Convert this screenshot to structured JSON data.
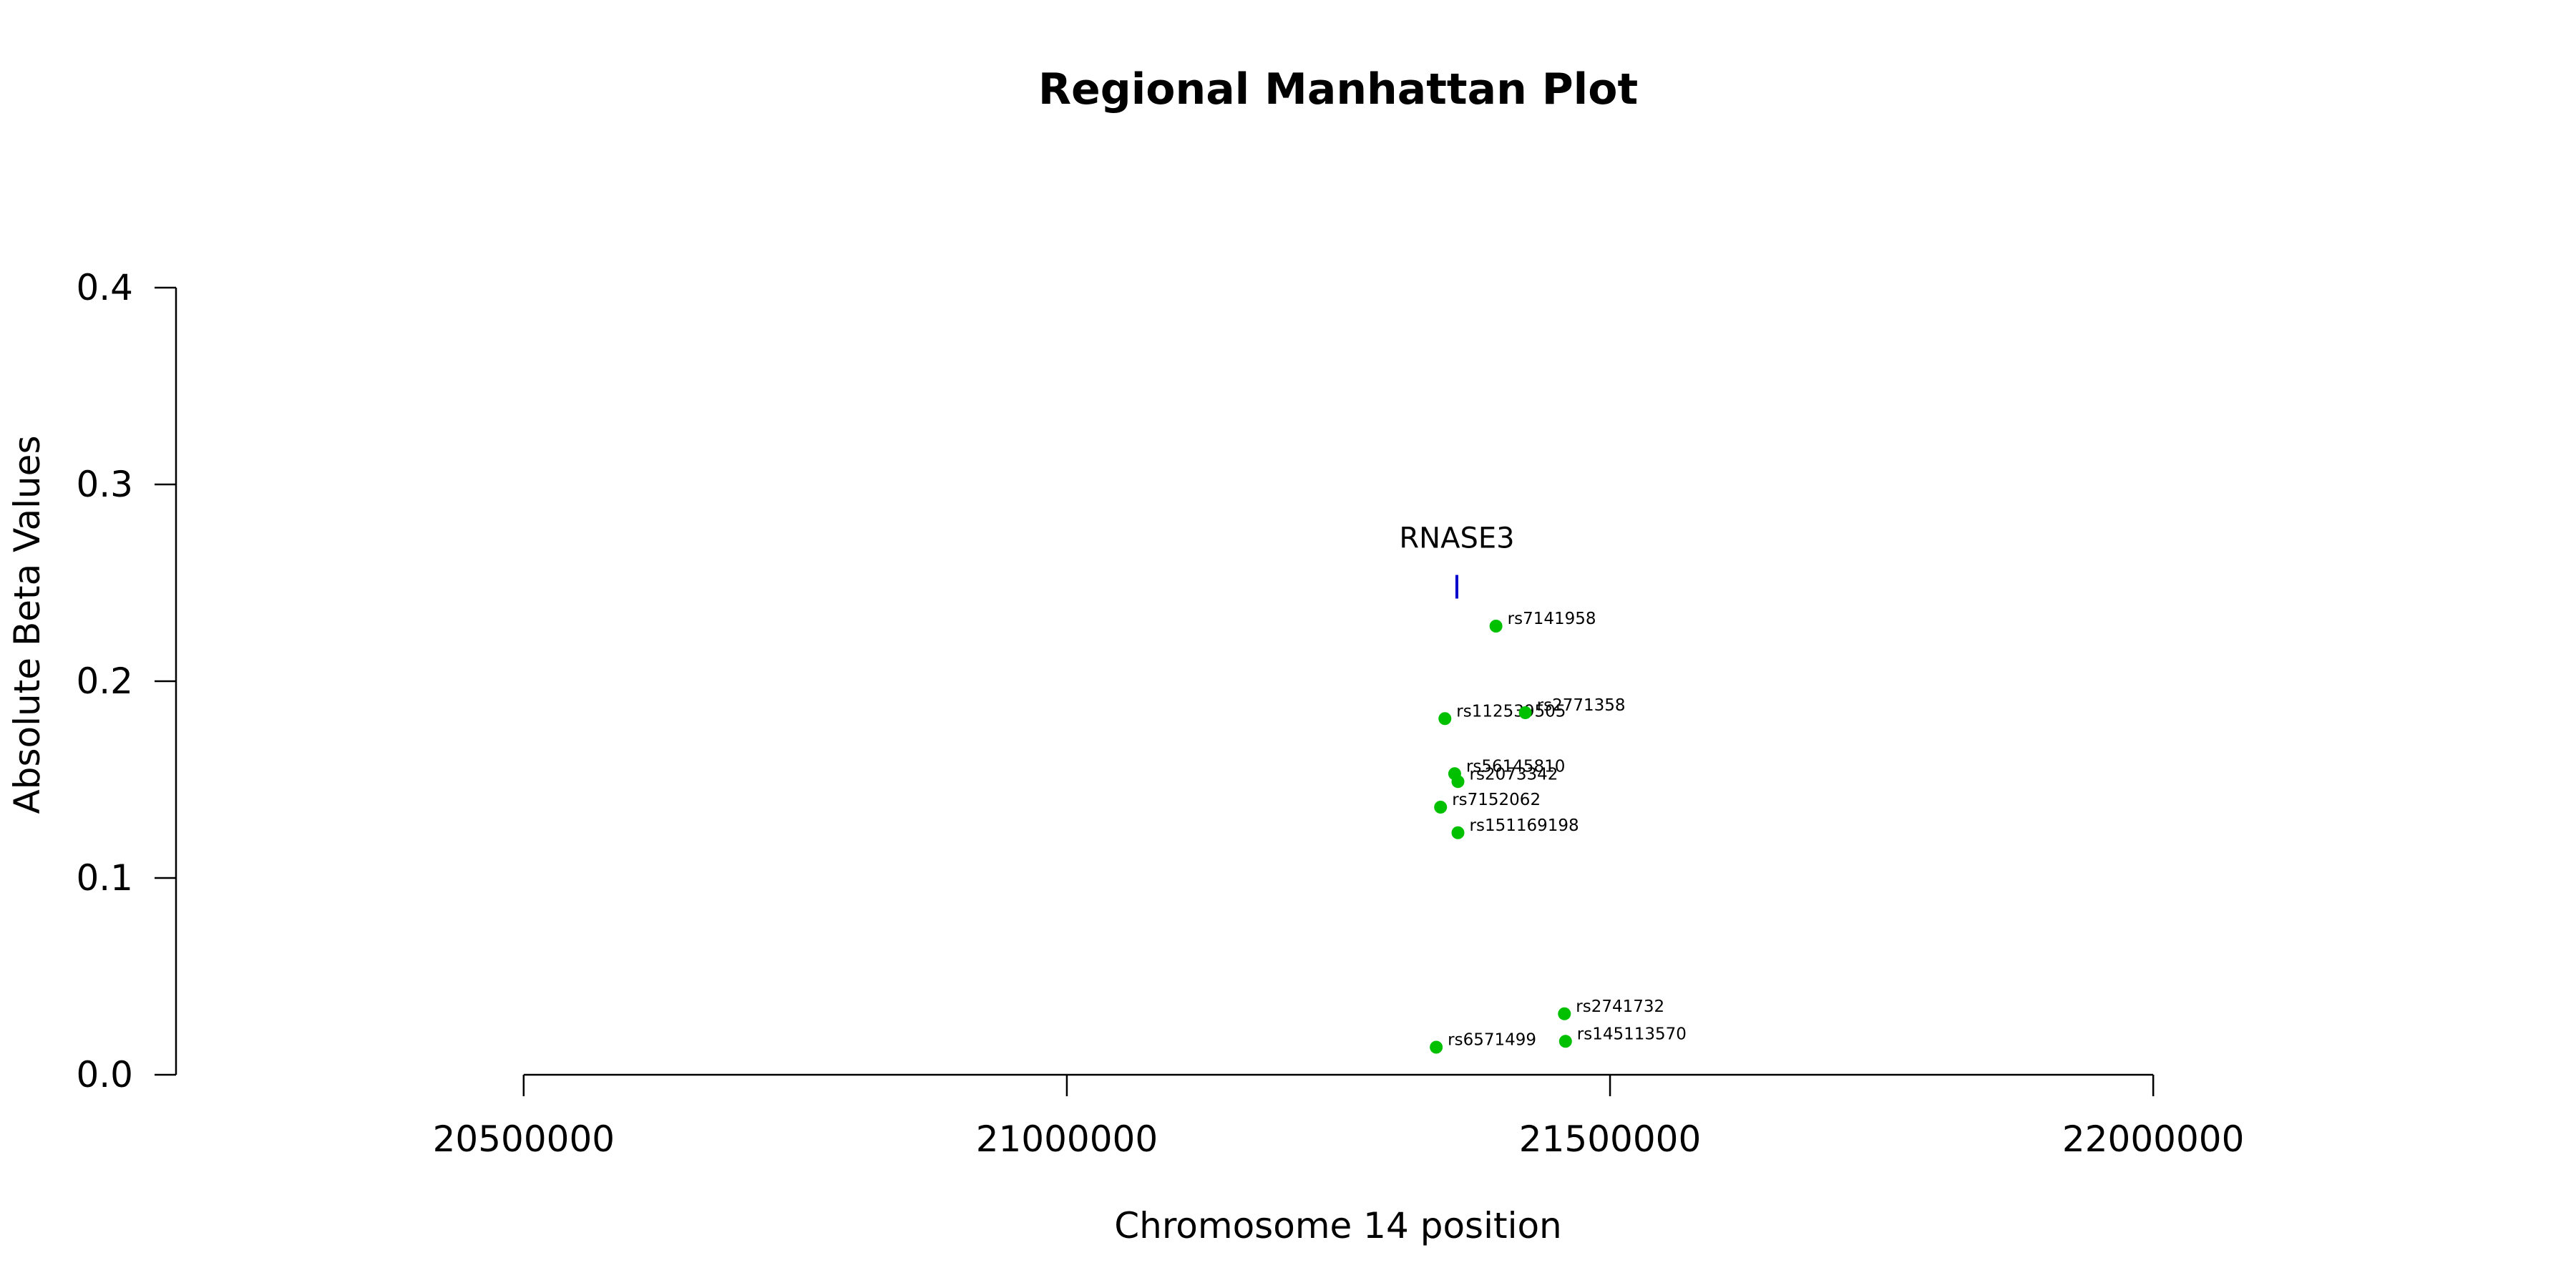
{
  "chart_data": {
    "type": "scatter",
    "title": "Regional Manhattan Plot",
    "xlabel": "Chromosome 14 position",
    "ylabel": "Absolute Beta Values",
    "xlim": [
      20180000,
      22320000
    ],
    "ylim": [
      0.0,
      0.4
    ],
    "x_ticks": [
      20500000,
      21000000,
      21500000,
      22000000
    ],
    "x_tick_labels": [
      "20500000",
      "21000000",
      "21500000",
      "22000000"
    ],
    "y_ticks": [
      0.0,
      0.1,
      0.2,
      0.3,
      0.4
    ],
    "y_tick_labels": [
      "0.0",
      "0.1",
      "0.2",
      "0.3",
      "0.4"
    ],
    "x_axis_range": [
      20500000,
      22000000
    ],
    "grid": false,
    "point_color": "#00c000",
    "gene_color": "#0000cc",
    "points": [
      {
        "label": "rs7141958",
        "x": 21395000,
        "y": 0.228
      },
      {
        "label": "rs112539505",
        "x": 21348000,
        "y": 0.181
      },
      {
        "label": "rs2771358",
        "x": 21422000,
        "y": 0.184
      },
      {
        "label": "rs56145810",
        "x": 21357000,
        "y": 0.153
      },
      {
        "label": "rs2073342",
        "x": 21360000,
        "y": 0.149
      },
      {
        "label": "rs7152062",
        "x": 21344000,
        "y": 0.136
      },
      {
        "label": "rs151169198",
        "x": 21360000,
        "y": 0.123
      },
      {
        "label": "rs2741732",
        "x": 21458000,
        "y": 0.031
      },
      {
        "label": "rs145113570",
        "x": 21459000,
        "y": 0.017
      },
      {
        "label": "rs6571499",
        "x": 21340000,
        "y": 0.014
      }
    ],
    "genes": [
      {
        "name": "RNASE3",
        "x": 21359000,
        "y_low": 0.242,
        "y_high": 0.254
      }
    ]
  }
}
